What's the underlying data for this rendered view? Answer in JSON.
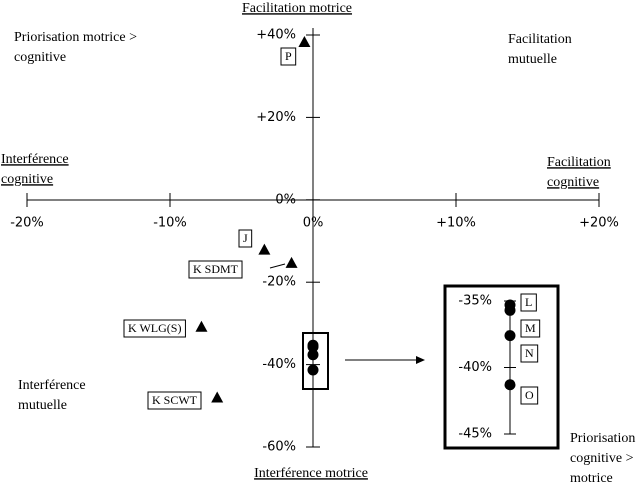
{
  "chart_data": {
    "type": "scatter",
    "xlim": [
      -20,
      20
    ],
    "ylim": [
      -60,
      40
    ],
    "xticks": [
      {
        "value": -20,
        "label": "-20%"
      },
      {
        "value": -10,
        "label": "-10%"
      },
      {
        "value": 0,
        "label": "0%"
      },
      {
        "value": 10,
        "label": "+10%"
      },
      {
        "value": 20,
        "label": "+20%"
      }
    ],
    "yticks": [
      {
        "value": 40,
        "label": "+40%"
      },
      {
        "value": 20,
        "label": "+20%"
      },
      {
        "value": 0,
        "label": "0%"
      },
      {
        "value": -20,
        "label": "-20%"
      },
      {
        "value": -40,
        "label": "-40%"
      },
      {
        "value": -60,
        "label": "-60%"
      }
    ],
    "color": "#000000",
    "points": [
      {
        "label": "P",
        "x": -0.6,
        "y": 38.3,
        "marker": "triangle"
      },
      {
        "label": "J",
        "x": -3.4,
        "y": -12.1,
        "marker": "triangle"
      },
      {
        "label": "K SDMT",
        "x": -1.5,
        "y": -15.3,
        "marker": "triangle"
      },
      {
        "label": "K WLG(S)",
        "x": -7.8,
        "y": -30.8,
        "marker": "triangle"
      },
      {
        "label": "K SCWT",
        "x": -6.7,
        "y": -48.0,
        "marker": "triangle"
      },
      {
        "label": "L",
        "x": 0,
        "y": -35.3,
        "marker": "circle"
      },
      {
        "label": "M",
        "x": 0,
        "y": -35.7,
        "marker": "circle"
      },
      {
        "label": "N",
        "x": 0,
        "y": -37.6,
        "marker": "circle"
      },
      {
        "label": "O",
        "x": 0,
        "y": -41.3,
        "marker": "circle"
      }
    ],
    "inset": {
      "ylim": [
        -45,
        -35
      ],
      "yticks": [
        {
          "value": -35,
          "label": "-35%"
        },
        {
          "value": -40,
          "label": "-40%"
        },
        {
          "value": -45,
          "label": "-45%"
        }
      ]
    },
    "axis_labels": {
      "top": "Facilitation motrice",
      "bottom": "Interférence motrice",
      "left": [
        "Interférence",
        "cognitive"
      ],
      "right": [
        "Facilitation",
        "cognitive"
      ]
    },
    "quadrants": {
      "top_left": [
        "Priorisation motrice >",
        "cognitive"
      ],
      "top_right": [
        "Facilitation",
        "mutuelle"
      ],
      "bottom_left": [
        "Interférence",
        "mutuelle"
      ],
      "bottom_right": [
        "Priorisation",
        "cognitive >",
        "motrice"
      ]
    }
  }
}
